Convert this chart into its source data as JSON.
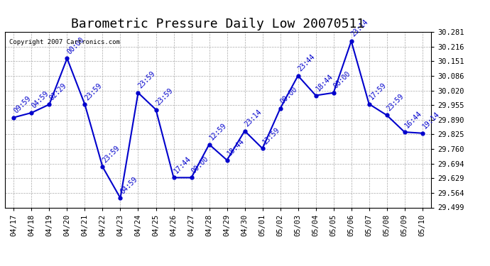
{
  "title": "Barometric Pressure Daily Low 20070511",
  "copyright": "Copyright 2007 Cartronics.com",
  "x_labels": [
    "04/17",
    "04/18",
    "04/19",
    "04/20",
    "04/21",
    "04/22",
    "04/23",
    "04/24",
    "04/25",
    "04/26",
    "04/27",
    "04/28",
    "04/29",
    "04/30",
    "05/01",
    "05/02",
    "05/03",
    "05/04",
    "05/05",
    "05/06",
    "05/07",
    "05/08",
    "05/09",
    "05/10"
  ],
  "y_values": [
    29.9,
    29.921,
    29.958,
    30.163,
    29.958,
    29.68,
    29.541,
    30.01,
    29.935,
    29.632,
    29.632,
    29.78,
    29.71,
    29.84,
    29.762,
    29.94,
    30.086,
    29.998,
    30.01,
    30.24,
    29.96,
    29.91,
    29.835,
    29.83
  ],
  "point_labels": [
    "09:59",
    "04:59",
    "02:29",
    "00:00",
    "23:59",
    "23:59",
    "04:59",
    "23:59",
    "23:59",
    "17:44",
    "00:00",
    "12:59",
    "18:44",
    "23:14",
    "13:59",
    "00:00",
    "23:44",
    "18:44",
    "00:00",
    "23:14",
    "17:59",
    "23:59",
    "16:44",
    "19:14"
  ],
  "ylim": [
    29.499,
    30.281
  ],
  "yticks": [
    29.499,
    29.564,
    29.629,
    29.694,
    29.76,
    29.825,
    29.89,
    29.955,
    30.02,
    30.086,
    30.151,
    30.216,
    30.281
  ],
  "line_color": "#0000CC",
  "marker_color": "#0000CC",
  "background_color": "#FFFFFF",
  "grid_color": "#AAAAAA",
  "title_fontsize": 13,
  "label_fontsize": 7,
  "tick_fontsize": 7.5
}
